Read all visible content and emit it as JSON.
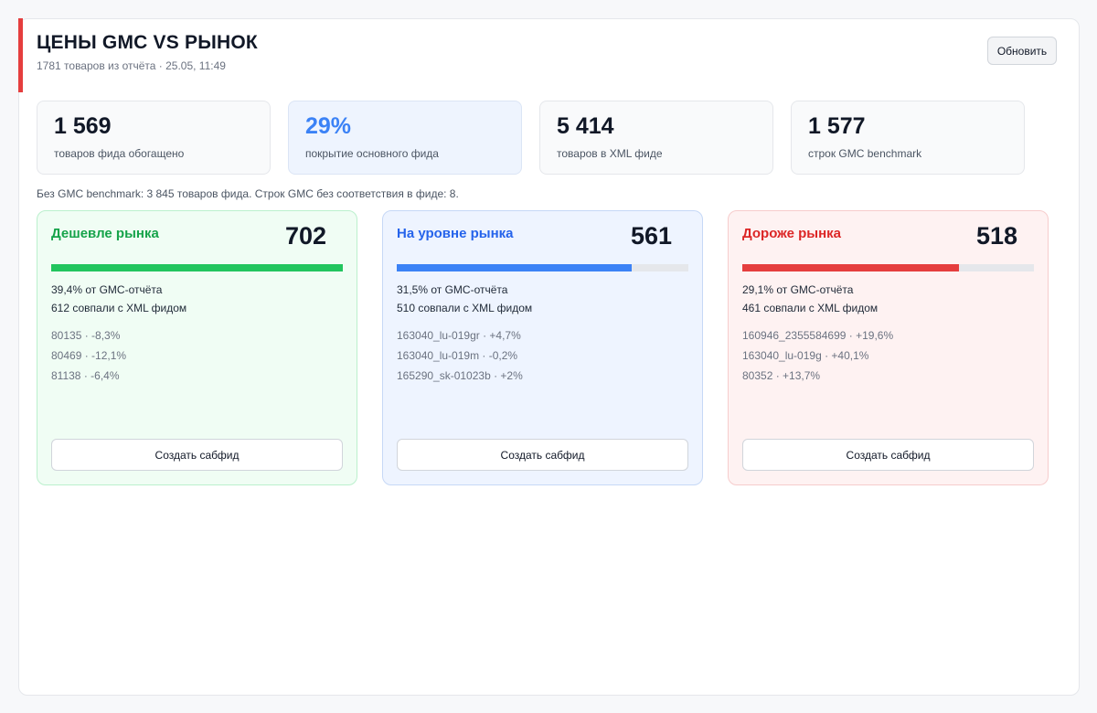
{
  "header": {
    "title": "ЦЕНЫ GMC VS РЫНОК",
    "subtitle": "1781 товаров из отчёта · 25.05, 11:49",
    "refresh_label": "Обновить"
  },
  "stats": [
    {
      "value": "1 569",
      "label": "товаров фида обогащено"
    },
    {
      "value": "29%",
      "label": "покрытие основного фида"
    },
    {
      "value": "5 414",
      "label": "товаров в XML фиде"
    },
    {
      "value": "1 577",
      "label": "строк GMC benchmark"
    }
  ],
  "note": "Без GMC benchmark: 3 845 товаров фида. Строк GMC без соответствия в фиде: 8.",
  "cards": [
    {
      "title": "Дешевле рынка",
      "count": "702",
      "progress_percent": 100,
      "share": "39,4% от GMC-отчёта",
      "matched": "612 совпали с XML фидом",
      "examples": [
        "80135 · -8,3%",
        "80469 · -12,1%",
        "81138 · -6,4%"
      ],
      "button_label": "Создать сабфид",
      "color": "#22c55e"
    },
    {
      "title": "На уровне рынка",
      "count": "561",
      "progress_percent": 80.5,
      "share": "31,5% от GMC-отчёта",
      "matched": "510 совпали с XML фидом",
      "examples": [
        "163040_lu-019gr · +4,7%",
        "163040_lu-019m · -0,2%",
        "165290_sk-01023b · +2%"
      ],
      "button_label": "Создать сабфид",
      "color": "#3b82f6"
    },
    {
      "title": "Дороже рынка",
      "count": "518",
      "progress_percent": 74.3,
      "share": "29,1% от GMC-отчёта",
      "matched": "461 совпали с XML фидом",
      "examples": [
        "160946_2355584699 · +19,6%",
        "163040_lu-019g · +40,1%",
        "80352 · +13,7%"
      ],
      "button_label": "Создать сабфид",
      "color": "#e53e3e"
    }
  ]
}
